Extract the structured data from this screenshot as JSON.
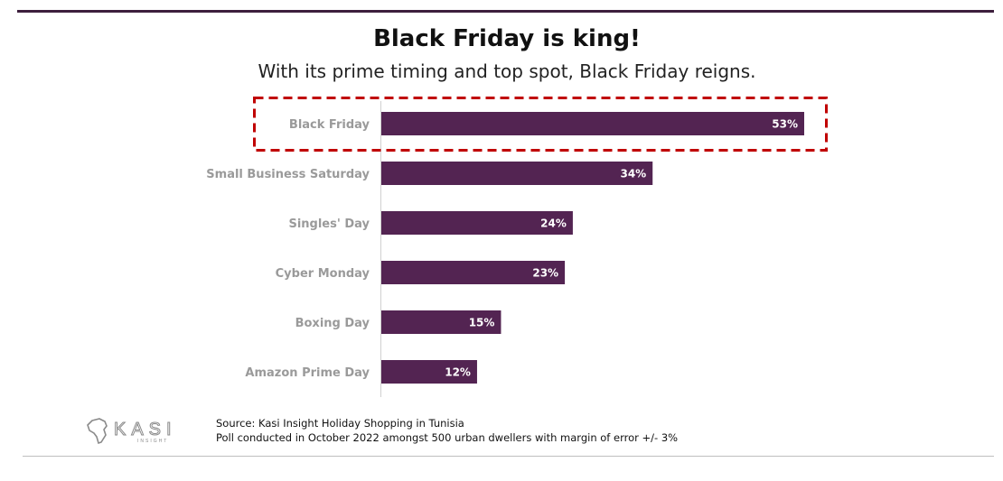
{
  "title": "Black Friday is king!",
  "subtitle": "With its prime timing and top spot, Black Friday reigns.",
  "colors": {
    "bar": "#532452",
    "highlight": "#c00000",
    "rule": "#3d1f3d"
  },
  "chart_data": {
    "type": "bar",
    "orientation": "horizontal",
    "categories": [
      "Black Friday",
      "Small Business Saturday",
      "Singles' Day",
      "Cyber Monday",
      "Boxing Day",
      "Amazon Prime Day"
    ],
    "values": [
      53,
      34,
      24,
      23,
      15,
      12
    ],
    "value_labels": [
      "53%",
      "34%",
      "24%",
      "23%",
      "15%",
      "12%"
    ],
    "unit": "%",
    "highlighted_category": "Black Friday",
    "grid": false,
    "legend": "none"
  },
  "footer": {
    "source_line1": "Source: Kasi Insight Holiday Shopping in Tunisia",
    "source_line2": "Poll conducted in October 2022 amongst 500 urban dwellers with margin of error +/- 3%",
    "logo_text": "KASI",
    "logo_subtext": "INSIGHT"
  }
}
